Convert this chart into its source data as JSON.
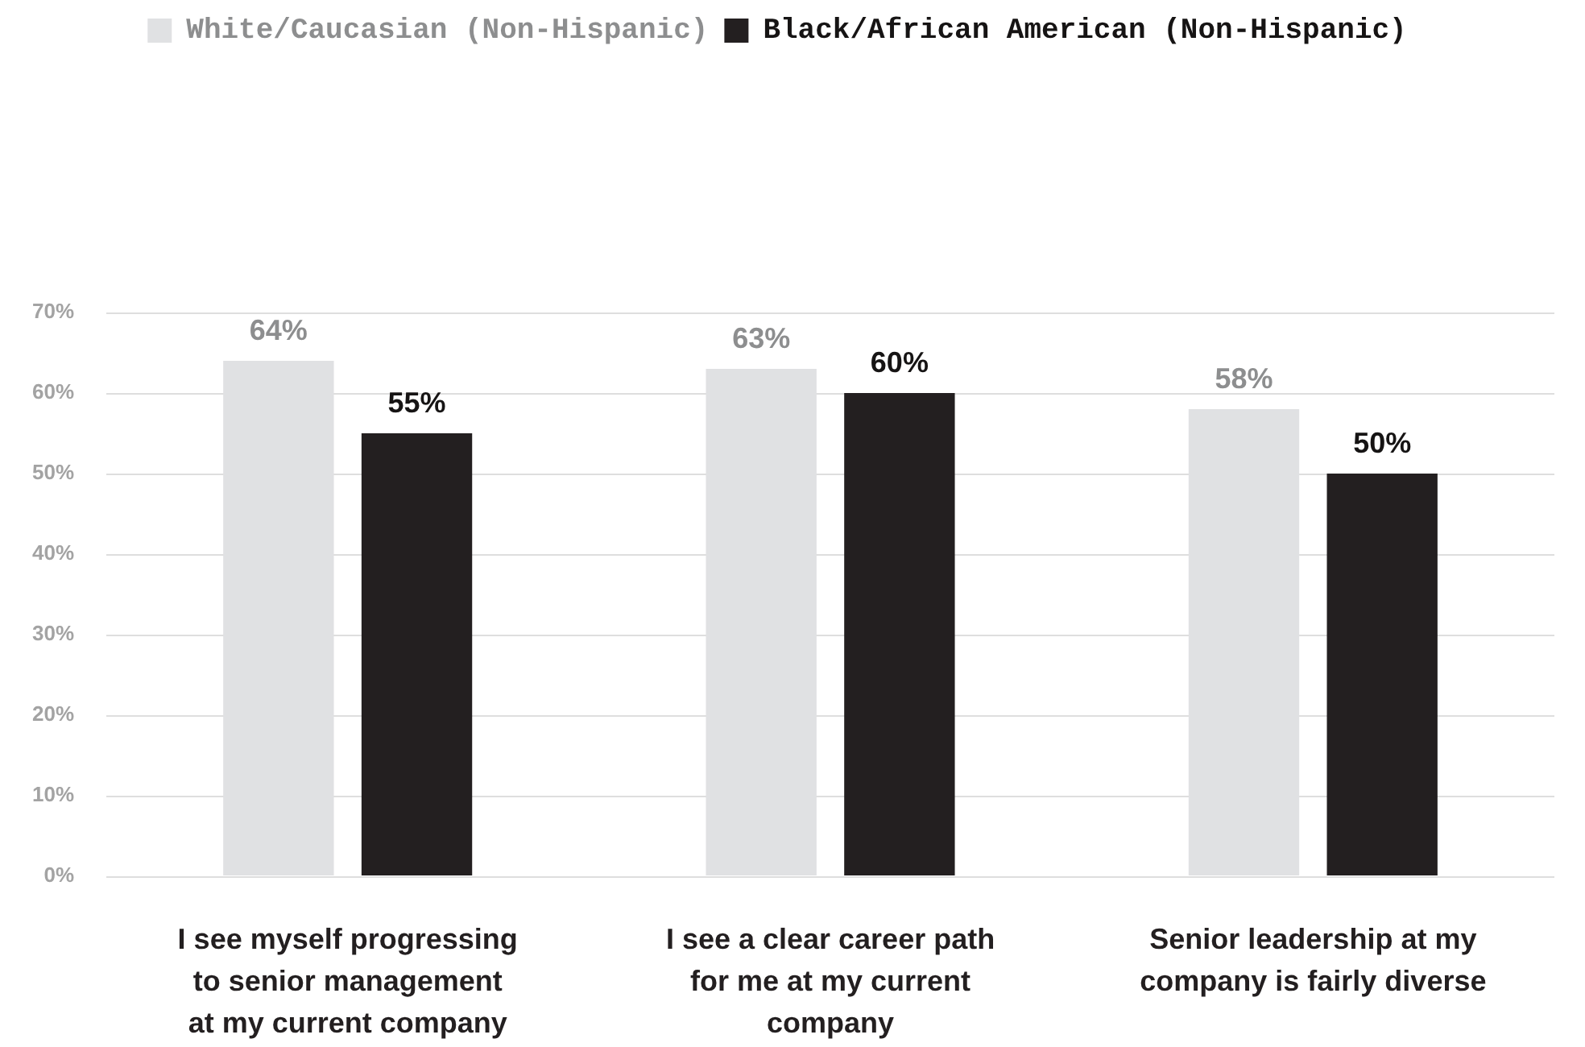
{
  "chart_data": {
    "type": "bar",
    "categories": [
      "I see myself progressing\nto senior management\nat my current company",
      "I see a clear career path\nfor me at my current\ncompany",
      "Senior leadership at my\ncompany is fairly diverse"
    ],
    "series": [
      {
        "name": "White/Caucasian (Non-Hispanic)",
        "color": "#e0e1e3",
        "values": [
          64,
          63,
          58
        ],
        "value_labels": [
          "64%",
          "63%",
          "58%"
        ]
      },
      {
        "name": "Black/African American (Non-Hispanic)",
        "color": "#231f20",
        "values": [
          55,
          60,
          50
        ],
        "value_labels": [
          "55%",
          "60%",
          "50%"
        ]
      }
    ],
    "ylim": [
      0,
      70
    ],
    "yticks": [
      {
        "value": 0,
        "label": "0%"
      },
      {
        "value": 10,
        "label": "10%"
      },
      {
        "value": 20,
        "label": "20%"
      },
      {
        "value": 30,
        "label": "30%"
      },
      {
        "value": 40,
        "label": "40%"
      },
      {
        "value": 50,
        "label": "50%"
      },
      {
        "value": 60,
        "label": "60%"
      },
      {
        "value": 70,
        "label": "70%"
      }
    ],
    "grid": "y",
    "legend": "top"
  }
}
